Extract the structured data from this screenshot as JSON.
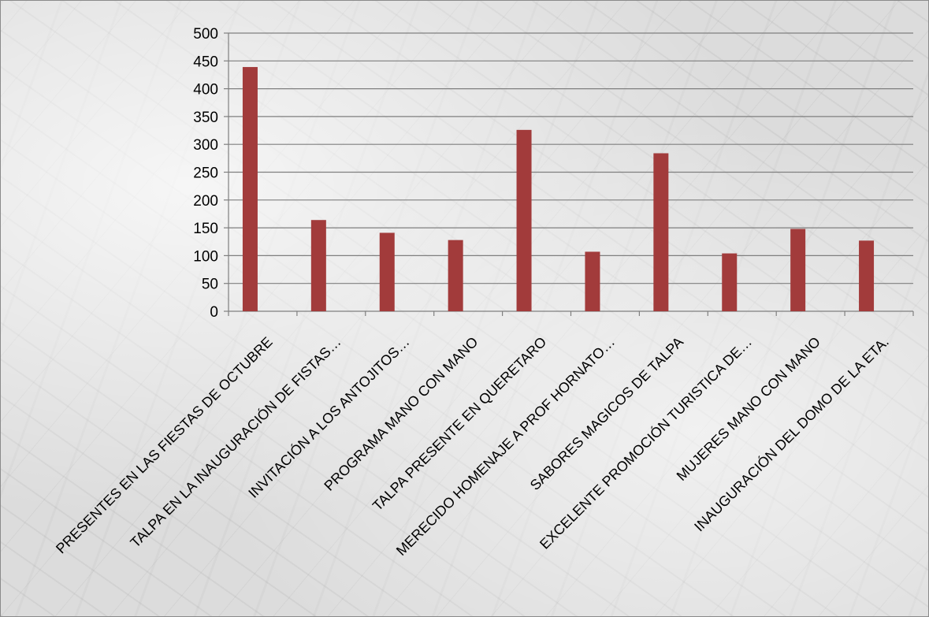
{
  "chart_data": {
    "type": "bar",
    "categories": [
      "PRESENTES EN LAS FIESTAS DE OCTUBRE",
      "TALPA EN LA INAUGURACIÓN DE FISTAS…",
      "INVITACIÓN  A LOS ANTOJITOS…",
      "PROGRAMA MANO CON MANO",
      "TALPA PRESENTE EN QUERETARO",
      "MERECIDO HOMENAJE A PROF HORNATO…",
      "SABORES MAGICOS DE TALPA",
      "EXCELENTE PROMOCIÓN TURISTICA DE…",
      "MUJERES MANO CON MANO",
      "INAUGURACIÓN DEL DOMO DE LA ETA."
    ],
    "values": [
      439,
      164,
      141,
      128,
      326,
      107,
      284,
      104,
      148,
      127
    ],
    "ylim": [
      0,
      500
    ],
    "yticks": [
      0,
      50,
      100,
      150,
      200,
      250,
      300,
      350,
      400,
      450,
      500
    ],
    "title": "",
    "xlabel": "",
    "ylabel": "",
    "grid": true,
    "legend": "none",
    "bar_color": "#a23b3b",
    "grid_color": "#7f7f7f"
  }
}
